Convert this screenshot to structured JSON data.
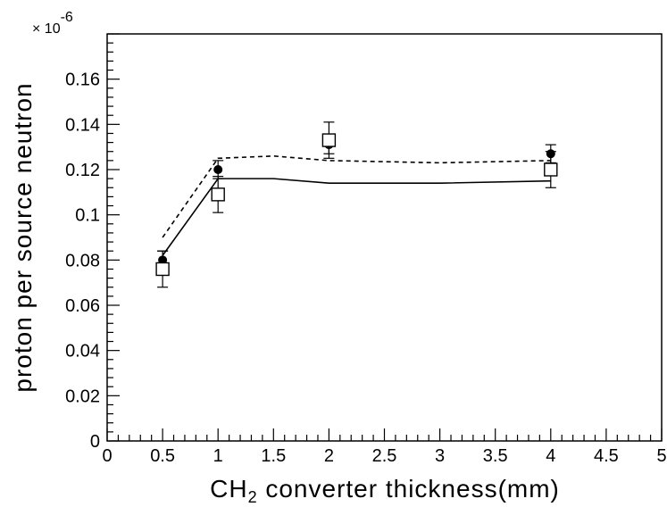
{
  "chart_data": {
    "type": "scatter",
    "xlabel_main": "CH",
    "xlabel_sub": "2",
    "xlabel_rest": " converter thickness(mm)",
    "ylabel": "proton per source neutron",
    "y_multiplier_base": "× 10",
    "y_multiplier_exp": "-6",
    "xlim": [
      0,
      5
    ],
    "ylim": [
      0,
      0.18
    ],
    "x_ticks": [
      "0",
      "0.5",
      "1",
      "1.5",
      "2",
      "2.5",
      "3",
      "3.5",
      "4",
      "4.5",
      "5"
    ],
    "y_ticks": [
      "0",
      "0.02",
      "0.04",
      "0.06",
      "0.08",
      "0.1",
      "0.12",
      "0.14",
      "0.16"
    ],
    "grid": false,
    "series": [
      {
        "marker": "filled-circle",
        "x": [
          0.5,
          1,
          2,
          4
        ],
        "y": [
          0.08,
          0.12,
          0.131,
          0.127
        ],
        "err": [
          0.004,
          0.004,
          0.004,
          0.004
        ]
      },
      {
        "marker": "open-square",
        "x": [
          0.5,
          1,
          2,
          4
        ],
        "y": [
          0.076,
          0.109,
          0.133,
          0.12
        ],
        "err": [
          0.008,
          0.008,
          0.008,
          0.008
        ]
      },
      {
        "line_style": "dashed",
        "x": [
          0.5,
          1,
          1.5,
          2,
          3,
          4
        ],
        "y": [
          0.09,
          0.125,
          0.126,
          0.124,
          0.123,
          0.124
        ]
      },
      {
        "line_style": "solid",
        "x": [
          0.5,
          1,
          1.5,
          2,
          3,
          4
        ],
        "y": [
          0.082,
          0.116,
          0.116,
          0.114,
          0.114,
          0.115
        ]
      }
    ]
  }
}
